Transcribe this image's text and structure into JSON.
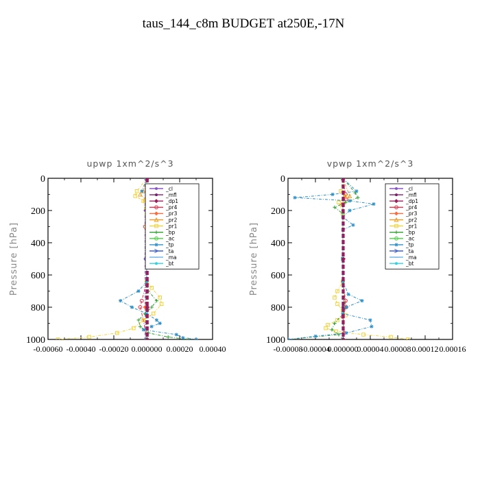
{
  "figure": {
    "title": "taus_144_c8m  BUDGET at250E,-17N"
  },
  "chart_data": [
    {
      "type": "line",
      "title": "upwp   1xm^2/s^3",
      "ylabel": "Pressure [hPa]",
      "ylim": [
        1000,
        0
      ],
      "y_inverted": true,
      "xlim": [
        -0.0006,
        0.0004
      ],
      "xticks": [
        -0.0006,
        -0.0004,
        -0.0002,
        0.0,
        0.0002,
        0.0004
      ],
      "xtick_labels": [
        "-0.00060",
        "-0.00040",
        "-0.00020",
        "0.000000",
        "0.00020",
        "0.00040"
      ],
      "yticks": [
        0,
        200,
        400,
        600,
        800,
        1000
      ],
      "ytick_labels": [
        "0",
        "200",
        "400",
        "600",
        "800",
        "1000"
      ],
      "legend_position": "upper-right",
      "series": [
        {
          "name": "_cl",
          "color": "#8a57c9",
          "marker": "dot",
          "points": [
            [
              -1e-05,
              0
            ],
            [
              -1e-05,
              200
            ],
            [
              -1e-05,
              500
            ],
            [
              -1e-05,
              800
            ],
            [
              -1e-05,
              1000
            ]
          ]
        },
        {
          "name": "_mfl",
          "color": "#7a1f6e",
          "marker": "dot",
          "points": [
            [
              0,
              0
            ],
            [
              0,
              200
            ],
            [
              0,
              500
            ],
            [
              0,
              800
            ],
            [
              0,
              1000
            ]
          ]
        },
        {
          "name": "_dp1",
          "color": "#9b1d5a",
          "marker": "diamond",
          "points": [
            [
              5e-06,
              0
            ],
            [
              5e-06,
              200
            ],
            [
              5e-06,
              500
            ],
            [
              5e-06,
              800
            ],
            [
              5e-06,
              1000
            ]
          ]
        },
        {
          "name": "_pr4",
          "color": "#e8304a",
          "marker": "circle",
          "points": [
            [
              0,
              0
            ],
            [
              0,
              120
            ],
            [
              -1e-05,
              300
            ],
            [
              0,
              640
            ],
            [
              -3e-05,
              760
            ],
            [
              -4e-05,
              800
            ],
            [
              -2e-05,
              880
            ],
            [
              0,
              1000
            ]
          ]
        },
        {
          "name": "_pr3",
          "color": "#ff6a3d",
          "marker": "diamond",
          "points": [
            [
              0,
              0
            ],
            [
              0,
              120
            ],
            [
              0,
              640
            ],
            [
              -1e-05,
              800
            ],
            [
              0,
              1000
            ]
          ]
        },
        {
          "name": "_pr2",
          "color": "#f0a02a",
          "marker": "triangle",
          "points": [
            [
              0,
              0
            ],
            [
              -2e-05,
              80
            ],
            [
              -4e-05,
              100
            ],
            [
              -1e-05,
              130
            ],
            [
              0,
              300
            ],
            [
              0,
              640
            ],
            [
              0,
              1000
            ]
          ]
        },
        {
          "name": "_pr1",
          "color": "#f2d23a",
          "marker": "square",
          "points": [
            [
              0,
              0
            ],
            [
              -6e-05,
              80
            ],
            [
              -7e-05,
              110
            ],
            [
              -2e-05,
              140
            ],
            [
              0,
              300
            ],
            [
              0,
              640
            ],
            [
              3e-05,
              680
            ],
            [
              8e-05,
              740
            ],
            [
              9e-05,
              780
            ],
            [
              4e-05,
              840
            ],
            [
              -2e-05,
              880
            ],
            [
              -8e-05,
              930
            ],
            [
              -0.00018,
              960
            ],
            [
              -0.00035,
              985
            ],
            [
              -0.00054,
              1000
            ]
          ]
        },
        {
          "name": "_bp",
          "color": "#2f9e2f",
          "marker": "plus",
          "points": [
            [
              0,
              0
            ],
            [
              0,
              640
            ],
            [
              1e-05,
              700
            ],
            [
              6e-05,
              760
            ],
            [
              3e-05,
              800
            ],
            [
              -1e-05,
              840
            ],
            [
              -5e-05,
              880
            ],
            [
              -4e-05,
              920
            ],
            [
              1e-05,
              960
            ],
            [
              0.00013,
              985
            ],
            [
              0.00025,
              1000
            ]
          ]
        },
        {
          "name": "_ac",
          "color": "#46d63e",
          "marker": "circle",
          "points": [
            [
              0,
              0
            ],
            [
              0,
              500
            ],
            [
              0,
              1000
            ]
          ]
        },
        {
          "name": "_tp",
          "color": "#2e8fc8",
          "marker": "star",
          "points": [
            [
              0,
              0
            ],
            [
              -3e-05,
              80
            ],
            [
              3e-05,
              120
            ],
            [
              0,
              180
            ],
            [
              0,
              640
            ],
            [
              -5e-05,
              700
            ],
            [
              -0.00016,
              760
            ],
            [
              -9e-05,
              800
            ],
            [
              0,
              840
            ],
            [
              6e-05,
              880
            ],
            [
              8e-05,
              900
            ],
            [
              3e-05,
              920
            ],
            [
              -2e-05,
              940
            ],
            [
              0.00018,
              970
            ],
            [
              0.00022,
              990
            ],
            [
              0.0003,
              1000
            ]
          ]
        },
        {
          "name": "_ta",
          "color": "#3a5fcf",
          "marker": "arrow",
          "points": [
            [
              0,
              0
            ],
            [
              0,
              500
            ],
            [
              0,
              1000
            ]
          ]
        },
        {
          "name": "_ma",
          "color": "#6ab0e8",
          "marker": "dash",
          "points": [
            [
              0,
              0
            ],
            [
              0,
              500
            ],
            [
              0,
              1000
            ]
          ]
        },
        {
          "name": "_bt",
          "color": "#2fd4e0",
          "marker": "dot",
          "points": [
            [
              0,
              0
            ],
            [
              0,
              500
            ],
            [
              0,
              1000
            ]
          ]
        }
      ]
    },
    {
      "type": "line",
      "title": "vpwp   1xm^2/s^3",
      "ylabel": "Pressure [hPa]",
      "ylim": [
        1000,
        0
      ],
      "y_inverted": true,
      "xlim": [
        -8e-05,
        0.00016
      ],
      "xticks": [
        -8e-05,
        -4e-05,
        0.0,
        4e-05,
        8e-05,
        0.00012,
        0.00016
      ],
      "xtick_labels": [
        "-0.00008",
        "-0.00004",
        "0.000000",
        "0.00004",
        "0.00008",
        "0.00012",
        "0.00016"
      ],
      "yticks": [
        0,
        200,
        400,
        600,
        800,
        1000
      ],
      "ytick_labels": [
        "0",
        "200",
        "400",
        "600",
        "800",
        "1000"
      ],
      "legend_position": "upper-right",
      "series": [
        {
          "name": "_cl",
          "color": "#8a57c9",
          "marker": "dot",
          "points": [
            [
              0,
              0
            ],
            [
              0,
              500
            ],
            [
              0,
              1000
            ]
          ]
        },
        {
          "name": "_mfl",
          "color": "#7a1f6e",
          "marker": "dot",
          "points": [
            [
              0,
              0
            ],
            [
              0,
              200
            ],
            [
              0,
              500
            ],
            [
              0,
              800
            ],
            [
              0,
              1000
            ]
          ]
        },
        {
          "name": "_dp1",
          "color": "#9b1d5a",
          "marker": "diamond",
          "points": [
            [
              1e-06,
              0
            ],
            [
              1e-06,
              500
            ],
            [
              1e-06,
              1000
            ]
          ]
        },
        {
          "name": "_pr4",
          "color": "#e8304a",
          "marker": "circle",
          "points": [
            [
              0,
              0
            ],
            [
              4e-06,
              100
            ],
            [
              5e-06,
              130
            ],
            [
              0,
              160
            ],
            [
              0,
              640
            ],
            [
              4e-06,
              760
            ],
            [
              5e-06,
              800
            ],
            [
              0,
              860
            ],
            [
              2e-06,
              960
            ],
            [
              0,
              1000
            ]
          ]
        },
        {
          "name": "_pr3",
          "color": "#ff6a3d",
          "marker": "diamond",
          "points": [
            [
              0,
              0
            ],
            [
              3e-06,
              110
            ],
            [
              0,
              160
            ],
            [
              0,
              640
            ],
            [
              3e-06,
              800
            ],
            [
              0,
              1000
            ]
          ]
        },
        {
          "name": "_pr2",
          "color": "#f0a02a",
          "marker": "triangle",
          "points": [
            [
              0,
              0
            ],
            [
              1e-05,
              110
            ],
            [
              0,
              160
            ],
            [
              0,
              1000
            ]
          ]
        },
        {
          "name": "_pr1",
          "color": "#f2d23a",
          "marker": "square",
          "points": [
            [
              0,
              0
            ],
            [
              -3e-06,
              80
            ],
            [
              3e-06,
              110
            ],
            [
              -6e-06,
              150
            ],
            [
              0,
              220
            ],
            [
              0,
              640
            ],
            [
              -8e-06,
              700
            ],
            [
              -1.2e-05,
              740
            ],
            [
              -8e-06,
              780
            ],
            [
              0,
              820
            ],
            [
              4e-06,
              850
            ],
            [
              -8e-06,
              880
            ],
            [
              -2.2e-05,
              910
            ],
            [
              -2.5e-05,
              930
            ],
            [
              -1e-05,
              950
            ],
            [
              3e-05,
              970
            ],
            [
              7e-05,
              985
            ],
            [
              9.5e-05,
              1000
            ]
          ]
        },
        {
          "name": "_bp",
          "color": "#2f9e2f",
          "marker": "plus",
          "points": [
            [
              0,
              0
            ],
            [
              1.8e-05,
              90
            ],
            [
              2.2e-05,
              120
            ],
            [
              4e-06,
              150
            ],
            [
              -1.2e-05,
              180
            ],
            [
              0,
              220
            ],
            [
              0,
              640
            ],
            [
              4e-06,
              800
            ],
            [
              0,
              840
            ],
            [
              -1.2e-05,
              900
            ],
            [
              -1.6e-05,
              940
            ],
            [
              -6e-06,
              970
            ],
            [
              -8e-05,
              1000
            ]
          ]
        },
        {
          "name": "_ac",
          "color": "#46d63e",
          "marker": "circle",
          "points": [
            [
              0,
              0
            ],
            [
              0,
              500
            ],
            [
              0,
              1000
            ]
          ]
        },
        {
          "name": "_tp",
          "color": "#2e8fc8",
          "marker": "star",
          "points": [
            [
              0,
              0
            ],
            [
              2e-05,
              80
            ],
            [
              -1.5e-05,
              100
            ],
            [
              -7e-05,
              120
            ],
            [
              1e-05,
              140
            ],
            [
              4.5e-05,
              160
            ],
            [
              1e-05,
              200
            ],
            [
              0,
              240
            ],
            [
              1.5e-05,
              290
            ],
            [
              0,
              320
            ],
            [
              0,
              640
            ],
            [
              8e-06,
              720
            ],
            [
              2.8e-05,
              760
            ],
            [
              5e-06,
              800
            ],
            [
              0,
              840
            ],
            [
              4e-05,
              880
            ],
            [
              4.2e-05,
              920
            ],
            [
              5e-06,
              960
            ],
            [
              -4e-05,
              980
            ],
            [
              -8e-05,
              1000
            ]
          ]
        },
        {
          "name": "_ta",
          "color": "#3a5fcf",
          "marker": "arrow",
          "points": [
            [
              0,
              0
            ],
            [
              0,
              500
            ],
            [
              0,
              1000
            ]
          ]
        },
        {
          "name": "_ma",
          "color": "#6ab0e8",
          "marker": "dash",
          "points": [
            [
              0,
              0
            ],
            [
              0,
              500
            ],
            [
              0,
              1000
            ]
          ]
        },
        {
          "name": "_bt",
          "color": "#2fd4e0",
          "marker": "dot",
          "points": [
            [
              0,
              0
            ],
            [
              0,
              500
            ],
            [
              0,
              1000
            ]
          ]
        }
      ]
    }
  ]
}
